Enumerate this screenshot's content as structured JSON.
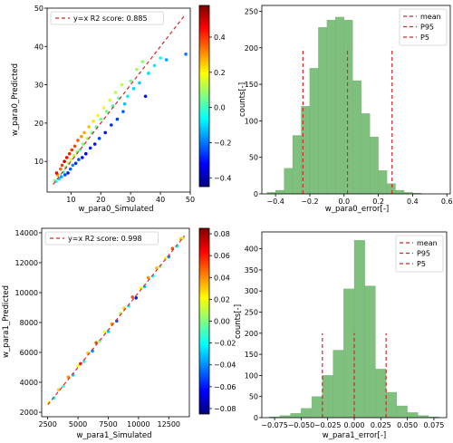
{
  "colors": {
    "diag_line": "#d62728",
    "mean_line": "#d62728",
    "hist_fill": "#7fc07f",
    "hist_edge": "#6aab6a",
    "colormap": [
      "#00007f",
      "#0000ff",
      "#007fff",
      "#00ffff",
      "#7fff7f",
      "#ffff00",
      "#ff7f00",
      "#ff0000",
      "#7f0000"
    ]
  },
  "chart_data": [
    {
      "type": "scatter",
      "xlabel": "w_para0_Simulated",
      "ylabel": "w_para0_Predicted",
      "xlim": [
        2,
        50
      ],
      "ylim": [
        2,
        50
      ],
      "xticks": [
        10,
        20,
        30,
        40,
        50
      ],
      "yticks": [
        10,
        20,
        30,
        40,
        50
      ],
      "legend": {
        "placement": "top-left",
        "entries": [
          "y=x   R2 score: 0.885"
        ]
      },
      "diagonal": [
        4,
        48
      ],
      "colorbar": {
        "min": -0.45,
        "max": 0.58,
        "ticks": [
          0.4,
          0.2,
          0.0,
          -0.2,
          -0.4
        ],
        "tick_labels": [
          "0.4",
          "0.2",
          "0.0",
          "−0.2",
          "−0.4"
        ]
      },
      "points": [
        [
          4.5,
          5.0,
          0.1
        ],
        [
          5.0,
          4.8,
          -0.05
        ],
        [
          5.5,
          6.5,
          0.3
        ],
        [
          5.2,
          7.0,
          0.45
        ],
        [
          6.0,
          5.5,
          -0.1
        ],
        [
          6.5,
          8.0,
          0.35
        ],
        [
          6.8,
          6.0,
          -0.15
        ],
        [
          7.0,
          9.0,
          0.4
        ],
        [
          7.5,
          7.2,
          0.0
        ],
        [
          7.8,
          10.0,
          0.5
        ],
        [
          8.0,
          6.5,
          -0.25
        ],
        [
          8.3,
          8.5,
          0.05
        ],
        [
          8.6,
          11.0,
          0.45
        ],
        [
          9.0,
          7.0,
          -0.3
        ],
        [
          9.2,
          9.5,
          0.1
        ],
        [
          9.5,
          12.0,
          0.42
        ],
        [
          9.8,
          8.0,
          -0.22
        ],
        [
          10.0,
          10.5,
          0.15
        ],
        [
          10.3,
          13.0,
          0.4
        ],
        [
          10.6,
          9.0,
          -0.18
        ],
        [
          11.0,
          11.5,
          0.12
        ],
        [
          11.3,
          14.0,
          0.38
        ],
        [
          11.6,
          9.5,
          -0.28
        ],
        [
          12.0,
          12.5,
          0.1
        ],
        [
          12.3,
          15.5,
          0.36
        ],
        [
          12.6,
          10.5,
          -0.24
        ],
        [
          13.0,
          13.0,
          0.02
        ],
        [
          13.5,
          16.5,
          0.3
        ],
        [
          13.8,
          11.0,
          -0.3
        ],
        [
          14.0,
          14.5,
          0.08
        ],
        [
          14.5,
          17.5,
          0.28
        ],
        [
          15.0,
          12.0,
          -0.32
        ],
        [
          15.5,
          16.0,
          0.1
        ],
        [
          16.0,
          19.0,
          0.25
        ],
        [
          16.5,
          13.5,
          -0.28
        ],
        [
          17.0,
          17.5,
          0.05
        ],
        [
          17.5,
          20.5,
          0.22
        ],
        [
          18.0,
          14.5,
          -0.3
        ],
        [
          18.5,
          19.0,
          0.02
        ],
        [
          19.0,
          22.0,
          0.2
        ],
        [
          19.5,
          16.0,
          -0.25
        ],
        [
          20.0,
          21.0,
          0.05
        ],
        [
          21.0,
          24.0,
          0.18
        ],
        [
          21.5,
          17.5,
          -0.3
        ],
        [
          22.0,
          23.0,
          0.05
        ],
        [
          23.0,
          26.0,
          0.15
        ],
        [
          23.5,
          19.5,
          -0.28
        ],
        [
          24.0,
          24.5,
          0.0
        ],
        [
          25.0,
          28.0,
          0.12
        ],
        [
          25.5,
          21.0,
          -0.26
        ],
        [
          26.0,
          26.5,
          0.02
        ],
        [
          27.0,
          30.0,
          0.12
        ],
        [
          27.5,
          23.0,
          -0.22
        ],
        [
          28.0,
          25.0,
          -0.12
        ],
        [
          29.0,
          27.0,
          -0.08
        ],
        [
          30.0,
          31.0,
          0.05
        ],
        [
          31.0,
          29.0,
          -0.1
        ],
        [
          32.0,
          34.0,
          0.1
        ],
        [
          33.0,
          30.5,
          -0.12
        ],
        [
          34.0,
          36.0,
          0.08
        ],
        [
          35.0,
          27.0,
          -0.3
        ],
        [
          36.0,
          33.0,
          -0.1
        ],
        [
          38.0,
          35.0,
          -0.08
        ],
        [
          40.0,
          37.0,
          -0.05
        ],
        [
          42.0,
          36.5,
          -0.15
        ],
        [
          48.5,
          38.0,
          -0.2
        ]
      ]
    },
    {
      "type": "bar",
      "xlabel": "w_para0_error[-]",
      "ylabel": "counts[-]",
      "xlim": [
        -0.48,
        0.62
      ],
      "ylim": [
        0,
        258
      ],
      "xticks": [
        -0.4,
        -0.2,
        0.0,
        0.2,
        0.4,
        0.6
      ],
      "xtick_labels": [
        "−0.4",
        "−0.2",
        "0.0",
        "0.2",
        "0.4",
        "0.6"
      ],
      "yticks": [
        0,
        50,
        100,
        150,
        200,
        250
      ],
      "bin_edges": [
        -0.45,
        -0.4,
        -0.35,
        -0.3,
        -0.25,
        -0.2,
        -0.15,
        -0.1,
        -0.05,
        0.0,
        0.05,
        0.1,
        0.15,
        0.2,
        0.25,
        0.3,
        0.35,
        0.4,
        0.45,
        0.5,
        0.55,
        0.6
      ],
      "counts": [
        2,
        5,
        35,
        80,
        120,
        172,
        228,
        238,
        242,
        238,
        155,
        110,
        78,
        32,
        14,
        5,
        2,
        1,
        0,
        0,
        0
      ],
      "vlines": [
        {
          "name": "mean",
          "x": 0.02,
          "y_top": 200
        },
        {
          "name": "P95",
          "x": 0.28,
          "y_top": 200
        },
        {
          "name": "P5",
          "x": -0.24,
          "y_top": 200
        }
      ],
      "legend": {
        "placement": "top-right",
        "entries": [
          "mean",
          "P95",
          "P5"
        ]
      }
    },
    {
      "type": "scatter",
      "xlabel": "w_para1_Simulated",
      "ylabel": "w_para1_Predicted",
      "xlim": [
        2000,
        14200
      ],
      "ylim": [
        1700,
        14300
      ],
      "xticks": [
        2500,
        5000,
        7500,
        10000,
        12500
      ],
      "yticks": [
        2000,
        4000,
        6000,
        8000,
        10000,
        12000,
        14000
      ],
      "legend": {
        "placement": "top-left",
        "entries": [
          "y=x   R2 score: 0.998"
        ]
      },
      "diagonal": [
        2500,
        13800
      ],
      "colorbar": {
        "min": -0.085,
        "max": 0.085,
        "ticks": [
          0.08,
          0.06,
          0.04,
          0.02,
          0.0,
          -0.02,
          -0.04,
          -0.06,
          -0.08
        ],
        "tick_labels": [
          "0.08",
          "0.06",
          "0.04",
          "0.02",
          "0.00",
          "−0.02",
          "−0.04",
          "−0.06",
          "−0.08"
        ]
      },
      "points": [
        [
          2600,
          2650,
          0.02
        ],
        [
          3000,
          2950,
          -0.02
        ],
        [
          3400,
          3500,
          0.03
        ],
        [
          3800,
          3750,
          -0.01
        ],
        [
          4200,
          4350,
          0.04
        ],
        [
          4600,
          4500,
          -0.03
        ],
        [
          5000,
          5100,
          0.02
        ],
        [
          5200,
          5250,
          0.06
        ],
        [
          5500,
          5400,
          -0.02
        ],
        [
          5800,
          5950,
          0.03
        ],
        [
          6200,
          6100,
          -0.04
        ],
        [
          6500,
          6650,
          0.05
        ],
        [
          6800,
          6750,
          0.0
        ],
        [
          7200,
          7350,
          0.02
        ],
        [
          7500,
          7400,
          -0.03
        ],
        [
          7800,
          7900,
          0.04
        ],
        [
          8200,
          8100,
          -0.05
        ],
        [
          8500,
          8600,
          0.01
        ],
        [
          8800,
          8950,
          0.03
        ],
        [
          9200,
          9100,
          -0.02
        ],
        [
          9500,
          9700,
          0.05
        ],
        [
          9800,
          9650,
          -0.06
        ],
        [
          10200,
          10300,
          0.02
        ],
        [
          10500,
          10400,
          -0.03
        ],
        [
          10800,
          11000,
          0.04
        ],
        [
          11200,
          11100,
          -0.02
        ],
        [
          11500,
          11650,
          0.03
        ],
        [
          11800,
          11750,
          0.0
        ],
        [
          12200,
          12300,
          0.02
        ],
        [
          12500,
          12400,
          -0.04
        ],
        [
          12800,
          12950,
          0.05
        ],
        [
          13200,
          13100,
          -0.02
        ],
        [
          13500,
          13600,
          0.03
        ],
        [
          13700,
          13650,
          0.01
        ]
      ]
    },
    {
      "type": "bar",
      "xlabel": "w_para1_error[-]",
      "ylabel": "counts[-]",
      "xlim": [
        -0.087,
        0.087
      ],
      "ylim": [
        0,
        440
      ],
      "xticks": [
        -0.075,
        -0.05,
        -0.025,
        0.0,
        0.025,
        0.05,
        0.075
      ],
      "xtick_labels": [
        "−0.075",
        "−0.050",
        "−0.025",
        "0.000",
        "0.025",
        "0.050",
        "0.075"
      ],
      "yticks": [
        0,
        50,
        100,
        150,
        200,
        250,
        300,
        350,
        400
      ],
      "bin_edges": [
        -0.08,
        -0.07,
        -0.06,
        -0.05,
        -0.04,
        -0.03,
        -0.02,
        -0.01,
        0.0,
        0.01,
        0.02,
        0.03,
        0.04,
        0.05,
        0.06,
        0.07,
        0.08
      ],
      "counts": [
        2,
        5,
        10,
        22,
        50,
        100,
        160,
        305,
        420,
        312,
        115,
        60,
        28,
        12,
        5,
        2
      ],
      "vlines": [
        {
          "name": "mean",
          "x": 0.0,
          "y_top": 200
        },
        {
          "name": "P95",
          "x": 0.03,
          "y_top": 200
        },
        {
          "name": "P5",
          "x": -0.03,
          "y_top": 200
        }
      ],
      "legend": {
        "placement": "top-right",
        "entries": [
          "mean",
          "P95",
          "P5"
        ]
      }
    }
  ]
}
